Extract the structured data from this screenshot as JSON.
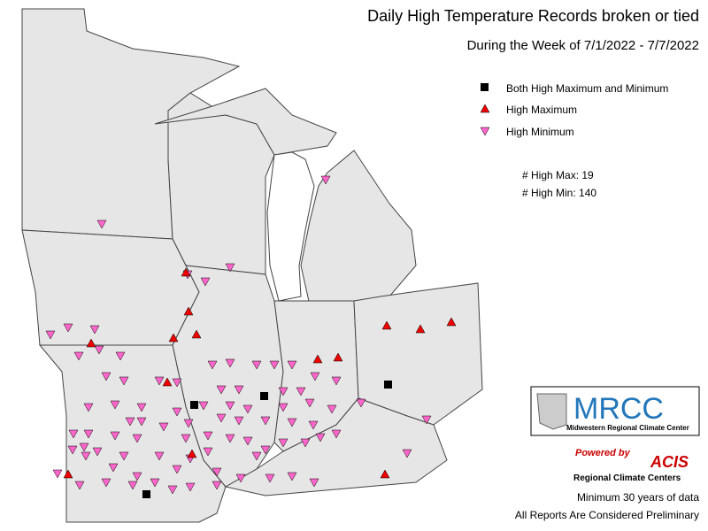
{
  "header": {
    "title": "Daily High Temperature Records broken or tied",
    "subtitle": "During the Week of 7/1/2022 - 7/7/2022"
  },
  "legend": {
    "items": [
      "Both High Maximum and Minimum",
      "High Maximum",
      "High Minimum"
    ]
  },
  "counts": {
    "high_max": "# High Max: 19",
    "high_min": "# High Min: 140"
  },
  "logo": {
    "name": "MRCC",
    "full_name": "Midwestern Regional Climate Center"
  },
  "acis": {
    "powered": "Powered by",
    "name": "ACIS",
    "sub": "Regional Climate Centers"
  },
  "footer": {
    "note1": "Minimum 30 years of data",
    "note2": "All Reports Are Considered Preliminary"
  }
}
